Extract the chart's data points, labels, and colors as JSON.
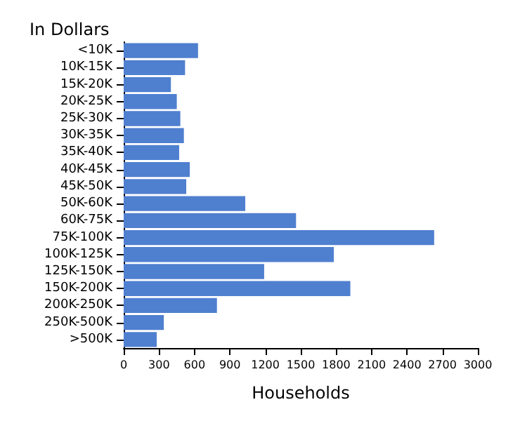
{
  "chart_data": {
    "type": "bar",
    "orientation": "horizontal",
    "ylabel": "In Dollars",
    "xlabel": "Households",
    "categories": [
      "<10K",
      "10K-15K",
      "15K-20K",
      "20K-25K",
      "25K-30K",
      "30K-35K",
      "35K-40K",
      "40K-45K",
      "45K-50K",
      "50K-60K",
      "60K-75K",
      "75K-100K",
      "100K-125K",
      "125K-150K",
      "150K-200K",
      "200K-250K",
      "250K-500K",
      ">500K"
    ],
    "values": [
      630,
      520,
      400,
      450,
      480,
      510,
      470,
      560,
      530,
      1030,
      1460,
      2630,
      1780,
      1190,
      1920,
      790,
      340,
      280
    ],
    "color": "#4f7fcf",
    "xlim": [
      0,
      3000
    ],
    "xticks": [
      0,
      300,
      600,
      900,
      1200,
      1500,
      1800,
      2100,
      2400,
      2700,
      3000
    ],
    "grid": false
  }
}
